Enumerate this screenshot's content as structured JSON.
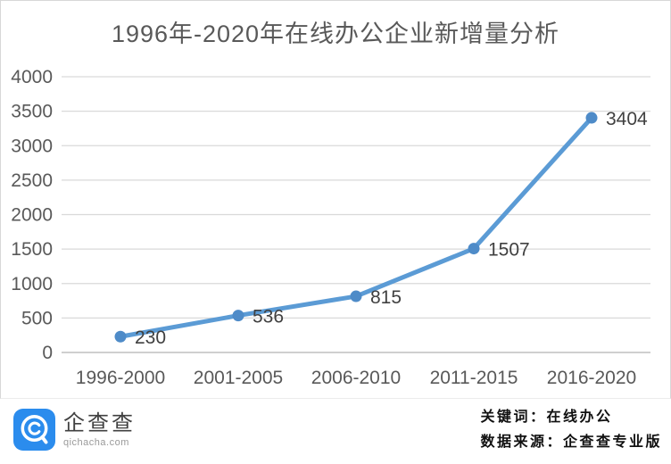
{
  "chart_data": {
    "type": "line",
    "title": "1996年-2020年在线办公企业新增量分析",
    "categories": [
      "1996-2000",
      "2001-2005",
      "2006-2010",
      "2011-2015",
      "2016-2020"
    ],
    "values": [
      230,
      536,
      815,
      1507,
      3404
    ],
    "xlabel": "",
    "ylabel": "",
    "ylim": [
      0,
      4000
    ],
    "yticks": [
      0,
      500,
      1000,
      1500,
      2000,
      2500,
      3000,
      3500,
      4000
    ],
    "grid": true,
    "legend": "none",
    "line_color": "#5b9bd5",
    "marker_color": "#4e8bc8",
    "data_label_color": "#404040",
    "axis_text_color": "#595959",
    "gridline_color": "#d9d9d9",
    "axis_line_color": "#bfbfbf"
  },
  "footer": {
    "logo": {
      "name": "企查查",
      "domain": "qichacha.com",
      "brand_color": "#2b8ced"
    },
    "keyword_line": "关键词：在线办公",
    "source_line": "数据来源：企查查专业版"
  }
}
